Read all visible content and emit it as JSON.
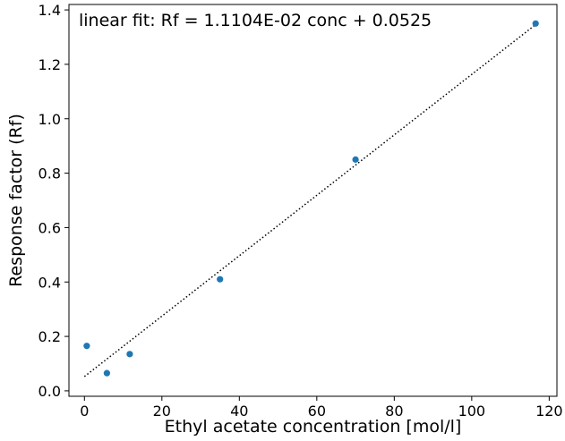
{
  "chart_data": {
    "type": "scatter",
    "title": "",
    "xlabel": "Ethyl acetate concentration [mol/l]",
    "ylabel": "Response factor (Rf)",
    "xlim": [
      -4.0,
      122.0
    ],
    "ylim": [
      -0.02,
      1.42
    ],
    "xticks": [
      0,
      20,
      40,
      60,
      80,
      100,
      120
    ],
    "yticks": [
      0.0,
      0.2,
      0.4,
      0.6,
      0.8,
      1.0,
      1.2,
      1.4
    ],
    "xtick_labels": [
      "0",
      "20",
      "40",
      "60",
      "80",
      "100",
      "120"
    ],
    "ytick_labels": [
      "0.0",
      "0.2",
      "0.4",
      "0.6",
      "0.8",
      "1.0",
      "1.2",
      "1.4"
    ],
    "grid": false,
    "annotation": "linear fit: Rf = 1.1104E-02 conc + 0.0525",
    "series": [
      {
        "kind": "scatter",
        "color": "#1f77b4",
        "x": [
          0.6,
          5.8,
          11.7,
          35.0,
          70.0,
          116.5
        ],
        "y": [
          0.165,
          0.065,
          0.135,
          0.41,
          0.85,
          1.35
        ]
      },
      {
        "kind": "fit-line",
        "style": "dotted",
        "color": "#000000",
        "x": [
          0.0,
          116.5
        ],
        "y": [
          0.0525,
          1.3461
        ]
      }
    ]
  }
}
